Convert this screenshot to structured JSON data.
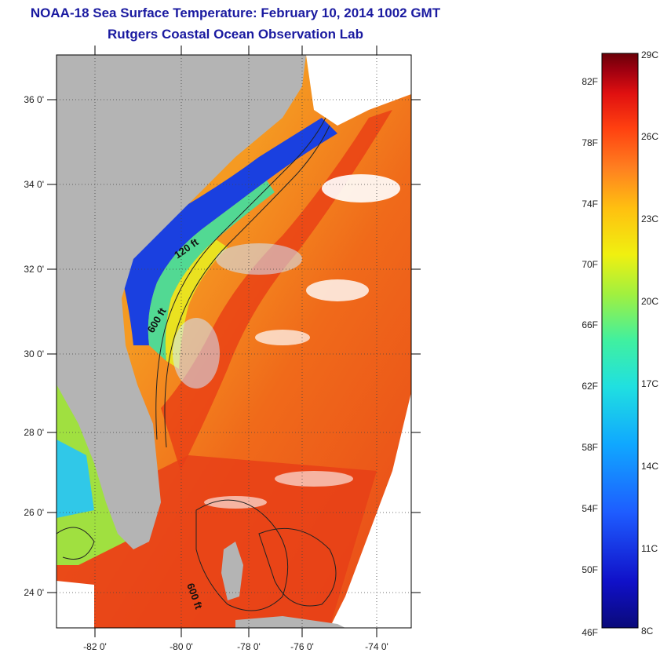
{
  "title_line1": "NOAA-18 Sea Surface Temperature:  February 10, 2014 1002 GMT",
  "title_line2": "Rutgers Coastal Ocean Observation Lab",
  "map": {
    "lat_ticks": [
      "36 0'",
      "34 0'",
      "32 0'",
      "30 0'",
      "28 0'",
      "26 0'",
      "24 0'"
    ],
    "lon_ticks": [
      "-82 0'",
      "-80 0'",
      "-78 0'",
      "-76 0'",
      "-74 0'"
    ],
    "contour_labels": [
      "120 ft",
      "600 ft",
      "600 ft"
    ],
    "colors": {
      "land": "#b4b4b4",
      "cloud": "#ffffff",
      "warm_water": "#e8401a",
      "mid_water": "#f8a020",
      "cool_water": "#1a3ad8"
    }
  },
  "colorbar": {
    "fahrenheit_labels": [
      "82F",
      "78F",
      "74F",
      "70F",
      "66F",
      "62F",
      "58F",
      "54F",
      "50F",
      "46F"
    ],
    "celsius_labels": [
      "29C",
      "26C",
      "23C",
      "20C",
      "17C",
      "14C",
      "11C",
      "8C"
    ],
    "colors": [
      "#0a0a7a",
      "#1010c8",
      "#1e5cff",
      "#10a8ff",
      "#20e0e0",
      "#40f0a0",
      "#a0f040",
      "#f0f010",
      "#ffc010",
      "#ff8020",
      "#ff4010",
      "#e01010",
      "#a00010",
      "#6a0008"
    ]
  }
}
